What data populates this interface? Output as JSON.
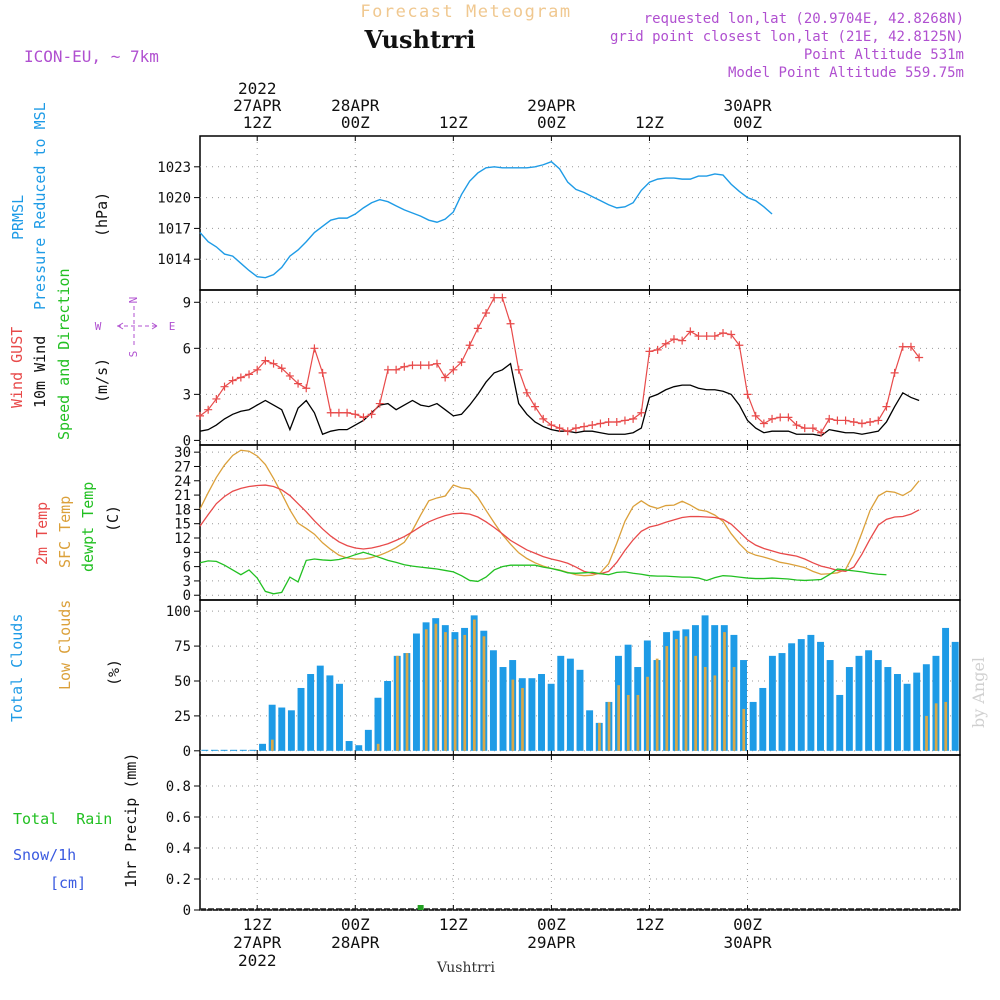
{
  "header": {
    "subtitle": "Forecast Meteogram",
    "station": "Vushtrri",
    "model": "ICON-EU, ~ 7km",
    "info_lines": [
      "requested lon,lat (20.9704E, 42.8268N)",
      "grid point closest lon,lat (21E, 42.8125N)",
      "Point Altitude 531m",
      "Model Point Altitude 559.75m"
    ],
    "footer_station": "Vushtrri",
    "watermark": "by Angel"
  },
  "time_axis": {
    "hours_start": 0,
    "hours_end": 93,
    "top_ticks": [
      {
        "h": 7,
        "lines": [
          "2022",
          "27APR",
          "12Z"
        ]
      },
      {
        "h": 19,
        "lines": [
          "28APR",
          "00Z"
        ]
      },
      {
        "h": 31,
        "lines": [
          "12Z"
        ]
      },
      {
        "h": 43,
        "lines": [
          "29APR",
          "00Z"
        ]
      },
      {
        "h": 55,
        "lines": [
          "12Z"
        ]
      },
      {
        "h": 67,
        "lines": [
          "30APR",
          "00Z"
        ]
      }
    ],
    "bottom_ticks": [
      {
        "h": 7,
        "lines": [
          "12Z",
          "27APR",
          "2022"
        ]
      },
      {
        "h": 19,
        "lines": [
          "00Z",
          "28APR"
        ]
      },
      {
        "h": 31,
        "lines": [
          "12Z"
        ]
      },
      {
        "h": 43,
        "lines": [
          "00Z",
          "29APR"
        ]
      },
      {
        "h": 55,
        "lines": [
          "12Z"
        ]
      },
      {
        "h": 67,
        "lines": [
          "00Z",
          "30APR"
        ]
      }
    ]
  },
  "panel_labels": {
    "pressure": {
      "lines": [
        "PRMSL",
        "Pressure Reduced to MSL"
      ],
      "unit": "(hPa)"
    },
    "wind": {
      "gust": "Wind GUST",
      "wind10": "10m Wind",
      "dir": "Speed and Direction",
      "unit": "(m/s)",
      "compass": [
        "N",
        "W",
        "E",
        "S"
      ]
    },
    "temp": {
      "t2m": "2m Temp",
      "sfc": "SFC Temp",
      "dew": "dewpt Temp",
      "unit": "(C)"
    },
    "clouds": {
      "total": "Total Clouds",
      "low": "Low Clouds",
      "unit": "(%)"
    },
    "precip": {
      "rain": "Total  Rain",
      "snow": "Snow/1h",
      "cm": "[cm]",
      "unit": "1hr Precip (mm)"
    }
  },
  "colors": {
    "pressure": "#1e9be6",
    "gust": "#e84a4a",
    "wind10": "#000000",
    "t2m": "#e84a4a",
    "sfc": "#dba03a",
    "dew": "#22c022",
    "total_clouds": "#1e9be6",
    "low_clouds": "#d8a848",
    "precip": "#22a022",
    "header_purple": "#b050d0",
    "header_orange": "#f0c890"
  },
  "chart_data": [
    {
      "type": "line",
      "title": "PRMSL Pressure Reduced to MSL",
      "ylabel": "(hPa)",
      "ylim": [
        1011,
        1026
      ],
      "yticks": [
        1014,
        1017,
        1020,
        1023
      ],
      "x_hours": [
        0,
        1,
        2,
        3,
        4,
        5,
        6,
        7,
        8,
        9,
        10,
        11,
        12,
        13,
        14,
        15,
        16,
        17,
        18,
        19,
        20,
        21,
        22,
        23,
        24,
        25,
        26,
        27,
        28,
        29,
        30,
        31,
        32,
        33,
        34,
        35,
        36,
        37,
        38,
        39,
        40,
        41,
        42,
        43,
        44,
        45,
        46,
        47,
        48,
        49,
        50,
        51,
        52,
        53,
        54,
        55,
        56,
        57,
        58,
        59,
        60,
        61,
        62,
        63,
        64,
        65,
        66,
        67,
        68,
        69,
        70,
        71,
        72,
        73,
        74,
        75,
        76,
        77,
        78,
        79,
        80,
        81,
        82,
        83,
        84,
        85,
        86,
        87,
        88,
        89,
        90,
        91,
        92,
        93
      ],
      "series": [
        {
          "values": [
            1016.6,
            1015.7,
            1015.2,
            1014.5,
            1014.3,
            1013.6,
            1012.9,
            1012.3,
            1012.2,
            1012.5,
            1013.2,
            1014.3,
            1014.9,
            1015.7,
            1016.6,
            1017.2,
            1017.8,
            1018.0,
            1018.0,
            1018.4,
            1019.0,
            1019.5,
            1019.8,
            1019.6,
            1019.2,
            1018.8,
            1018.5,
            1018.2,
            1017.8,
            1017.6,
            1017.9,
            1018.6,
            1020.3,
            1021.6,
            1022.4,
            1022.9,
            1023.0,
            1022.9,
            1022.9,
            1022.9,
            1022.9,
            1023.0,
            1023.2,
            1023.5,
            1022.8,
            1021.5,
            1020.8,
            1020.5,
            1020.1,
            1019.7,
            1019.3,
            1019.0,
            1019.1,
            1019.5,
            1020.7,
            1021.5,
            1021.8,
            1021.9,
            1021.9,
            1021.8,
            1021.8,
            1022.1,
            1022.1,
            1022.3,
            1022.2,
            1021.3,
            1020.6,
            1020.0,
            1019.7,
            1019.1,
            1018.4
          ]
        }
      ]
    },
    {
      "type": "line",
      "title": "Wind GUST / 10m Wind Speed and Direction",
      "ylabel": "(m/s)",
      "ylim": [
        -0.3,
        9.8
      ],
      "yticks": [
        0,
        3,
        6,
        9
      ],
      "series": [
        {
          "name": "Wind GUST",
          "values": [
            1.6,
            2.0,
            2.7,
            3.5,
            3.9,
            4.1,
            4.3,
            4.6,
            5.2,
            5.0,
            4.7,
            4.2,
            3.7,
            3.4,
            6.0,
            4.4,
            1.8,
            1.8,
            1.8,
            1.7,
            1.5,
            1.7,
            2.4,
            4.6,
            4.6,
            4.8,
            4.9,
            4.9,
            4.9,
            5.0,
            4.1,
            4.6,
            5.1,
            6.2,
            7.3,
            8.3,
            9.3,
            9.3,
            7.6,
            4.6,
            3.1,
            2.2,
            1.4,
            1.0,
            0.8,
            0.6,
            0.8,
            0.9,
            1.0,
            1.1,
            1.2,
            1.2,
            1.3,
            1.4,
            1.8,
            5.8,
            5.9,
            6.3,
            6.6,
            6.5,
            7.1,
            6.8,
            6.8,
            6.8,
            7.0,
            6.9,
            6.2,
            3.0,
            1.6,
            1.1,
            1.4,
            1.5,
            1.5,
            1.0,
            0.8,
            0.8,
            0.5,
            1.4,
            1.3,
            1.3,
            1.2,
            1.1,
            1.2,
            1.3,
            2.2,
            4.4,
            6.1,
            6.1,
            5.4
          ]
        },
        {
          "name": "10m Wind",
          "values": [
            0.6,
            0.7,
            1.0,
            1.4,
            1.7,
            1.9,
            2.0,
            2.3,
            2.6,
            2.3,
            2.0,
            0.7,
            2.1,
            2.6,
            1.8,
            0.4,
            0.6,
            0.7,
            0.7,
            1.0,
            1.3,
            1.8,
            2.3,
            2.4,
            2.0,
            2.3,
            2.6,
            2.3,
            2.2,
            2.4,
            2.0,
            1.6,
            1.7,
            2.3,
            3.0,
            3.8,
            4.4,
            4.6,
            5.0,
            2.4,
            1.7,
            1.2,
            0.9,
            0.7,
            0.6,
            0.6,
            0.5,
            0.6,
            0.6,
            0.5,
            0.4,
            0.4,
            0.4,
            0.5,
            0.8,
            2.8,
            3.0,
            3.3,
            3.5,
            3.6,
            3.6,
            3.4,
            3.3,
            3.3,
            3.2,
            3.0,
            2.3,
            1.3,
            0.8,
            0.5,
            0.6,
            0.6,
            0.6,
            0.4,
            0.4,
            0.4,
            0.3,
            0.7,
            0.6,
            0.5,
            0.5,
            0.4,
            0.5,
            0.6,
            1.2,
            2.2,
            3.1,
            2.8,
            2.6
          ]
        }
      ]
    },
    {
      "type": "line",
      "title": "2m Temp / SFC Temp / dewpt Temp",
      "ylabel": "(C)",
      "ylim": [
        -1,
        31.5
      ],
      "yticks": [
        0,
        3,
        6,
        9,
        12,
        15,
        18,
        21,
        24,
        27,
        30
      ],
      "series": [
        {
          "name": "2m Temp",
          "values": [
            14.5,
            16.9,
            19.2,
            20.7,
            21.8,
            22.4,
            22.8,
            23.0,
            23.1,
            22.8,
            22.1,
            20.9,
            19.2,
            17.5,
            15.6,
            13.9,
            12.4,
            11.2,
            10.4,
            9.9,
            9.7,
            9.9,
            10.3,
            10.8,
            11.5,
            12.3,
            13.3,
            14.4,
            15.4,
            16.1,
            16.7,
            17.1,
            17.2,
            17.0,
            16.4,
            15.4,
            14.2,
            12.9,
            11.5,
            10.5,
            9.5,
            8.8,
            8.1,
            7.6,
            7.2,
            6.7,
            5.9,
            5.0,
            4.6,
            4.5,
            5.0,
            6.9,
            9.4,
            11.6,
            13.4,
            14.3,
            14.7,
            15.3,
            15.8,
            16.3,
            16.5,
            16.5,
            16.4,
            16.3,
            15.9,
            14.9,
            13.3,
            11.6,
            10.5,
            9.8,
            9.3,
            8.8,
            8.5,
            8.2,
            7.6,
            6.8,
            6.1,
            5.7,
            5.2,
            5.0,
            5.9,
            8.6,
            11.8,
            14.7,
            15.9,
            16.4,
            16.5,
            17.0,
            17.9
          ]
        },
        {
          "name": "SFC Temp",
          "values": [
            18.1,
            21.5,
            24.7,
            27.3,
            29.3,
            30.4,
            30.2,
            29.2,
            27.4,
            24.5,
            21.3,
            17.9,
            15.1,
            14.0,
            12.8,
            11.0,
            9.6,
            8.4,
            7.8,
            7.6,
            7.6,
            7.9,
            8.4,
            9.1,
            10.0,
            11.1,
            13.6,
            16.8,
            19.8,
            20.4,
            20.8,
            23.1,
            22.5,
            22.3,
            20.5,
            17.8,
            15.2,
            12.7,
            10.7,
            8.9,
            7.7,
            6.8,
            6.1,
            5.6,
            5.3,
            4.8,
            4.3,
            4.1,
            4.2,
            4.7,
            6.6,
            10.9,
            15.5,
            18.6,
            19.8,
            18.7,
            18.2,
            18.8,
            18.9,
            19.7,
            18.9,
            17.9,
            17.6,
            16.8,
            15.5,
            12.9,
            10.8,
            9.1,
            8.4,
            8.0,
            7.5,
            6.9,
            6.6,
            6.2,
            5.8,
            5.0,
            4.4,
            4.5,
            4.7,
            5.4,
            8.7,
            13.1,
            17.8,
            20.8,
            21.8,
            21.6,
            20.9,
            21.9,
            24.0
          ]
        },
        {
          "name": "dewpt Temp",
          "values": [
            6.8,
            7.2,
            7.1,
            6.3,
            5.3,
            4.3,
            5.3,
            3.6,
            0.8,
            0.3,
            0.6,
            3.8,
            2.8,
            7.3,
            7.6,
            7.4,
            7.3,
            7.5,
            7.9,
            8.5,
            9.0,
            8.5,
            7.9,
            7.3,
            6.9,
            6.4,
            6.1,
            5.9,
            5.7,
            5.5,
            5.2,
            4.9,
            4.1,
            3.1,
            2.9,
            3.8,
            5.3,
            6.0,
            6.3,
            6.3,
            6.3,
            6.3,
            5.9,
            5.6,
            5.2,
            4.7,
            4.6,
            4.7,
            4.8,
            4.5,
            4.3,
            4.8,
            4.9,
            4.6,
            4.4,
            4.1,
            4.0,
            4.0,
            3.9,
            3.8,
            3.8,
            3.6,
            3.1,
            3.7,
            4.1,
            4.0,
            3.8,
            3.6,
            3.5,
            3.5,
            3.6,
            3.5,
            3.4,
            3.2,
            3.1,
            3.2,
            3.3,
            4.3,
            5.5,
            5.3,
            5.1,
            4.9,
            4.6,
            4.4,
            4.3
          ]
        }
      ]
    },
    {
      "type": "bar",
      "title": "Total Clouds / Low Clouds",
      "ylabel": "(%)",
      "ylim": [
        -3,
        108
      ],
      "yticks": [
        0,
        25,
        50,
        75,
        100
      ],
      "series": [
        {
          "name": "Total Clouds",
          "values": [
            0,
            0,
            0,
            0,
            0,
            0,
            5,
            33,
            31,
            29,
            45,
            55,
            61,
            54,
            48,
            7,
            4,
            15,
            38,
            50,
            68,
            70,
            84,
            92,
            95,
            90,
            85,
            88,
            97,
            86,
            72,
            60,
            65,
            52,
            52,
            55,
            48,
            68,
            66,
            58,
            29,
            20,
            35,
            68,
            76,
            60,
            79,
            65,
            85,
            86,
            87,
            90,
            97,
            90,
            90,
            83,
            65,
            35,
            45,
            68,
            70,
            77,
            80,
            83,
            78,
            65,
            40,
            60,
            68,
            72,
            65,
            60,
            55,
            48,
            56,
            62,
            68,
            88,
            78
          ]
        },
        {
          "name": "Low Clouds",
          "values": [
            0,
            0,
            0,
            0,
            0,
            0,
            0,
            8,
            0,
            0,
            0,
            0,
            0,
            0,
            0,
            0,
            0,
            0,
            5,
            0,
            68,
            70,
            0,
            87,
            91,
            85,
            80,
            83,
            94,
            82,
            0,
            0,
            51,
            45,
            0,
            0,
            0,
            0,
            0,
            0,
            0,
            20,
            35,
            47,
            40,
            40,
            53,
            66,
            75,
            80,
            82,
            68,
            60,
            54,
            85,
            60,
            30,
            0,
            0,
            0,
            0,
            0,
            0,
            0,
            0,
            0,
            0,
            0,
            0,
            0,
            0,
            0,
            0,
            0,
            0,
            25,
            34,
            35,
            0
          ]
        }
      ]
    },
    {
      "type": "bar",
      "title": "1hr Precip",
      "ylabel": "1hr Precip (mm)",
      "ylim": [
        0,
        1.0
      ],
      "yticks": [
        0,
        0.2,
        0.4,
        0.6,
        0.8
      ],
      "series": [
        {
          "name": "Total Rain",
          "values": [
            {
              "h": 27,
              "v": 0.01
            }
          ]
        }
      ]
    }
  ]
}
